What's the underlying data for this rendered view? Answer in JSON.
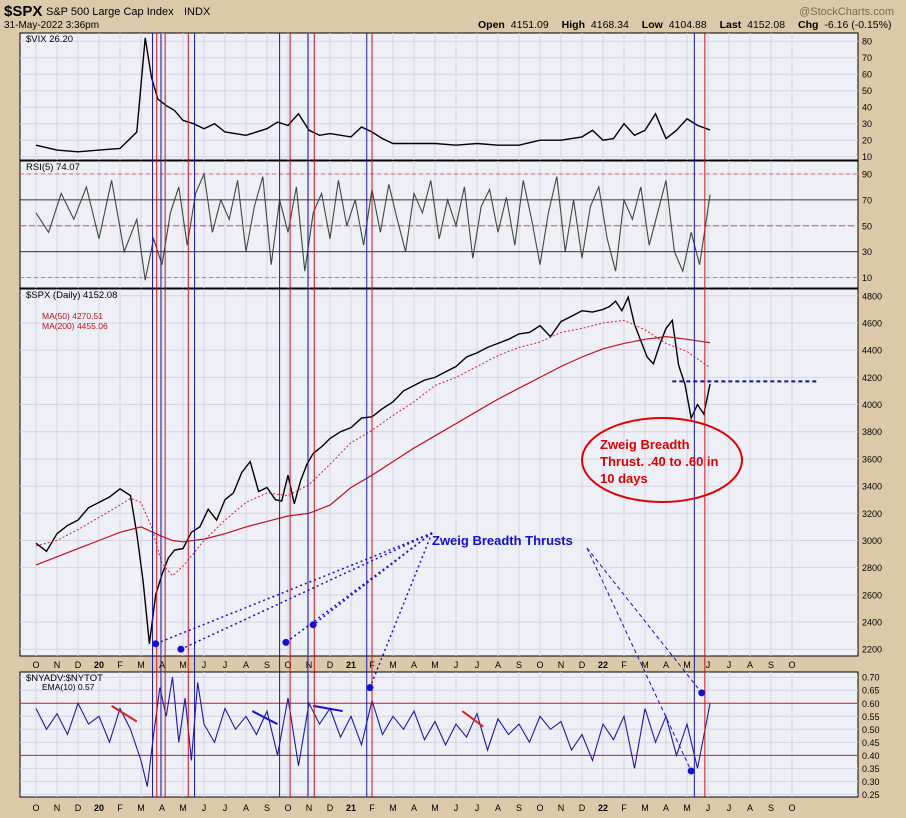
{
  "header": {
    "symbol": "$SPX",
    "name": "S&P 500 Large Cap Index",
    "exchange": "INDX",
    "date": "31-May-2022 3:36pm",
    "watermark": "@StockCharts.com",
    "open_label": "Open",
    "open": "4151.09",
    "high_label": "High",
    "high": "4168.34",
    "low_label": "Low",
    "low": "4104.88",
    "last_label": "Last",
    "last": "4152.08",
    "chg_label": "Chg",
    "chg": "-6.16 (-0.15%)"
  },
  "colors": {
    "background": "#efeff8",
    "frame": "#dcc9aa",
    "price": "#000000",
    "ma50": "#d0202a",
    "ma200": "#c0101a",
    "rsi_line": "#3a4a3a",
    "rsi_fill": "#8a8a7a",
    "breadth": "#1a1aa0",
    "signal_red": "#d0101a",
    "signal_blue": "#1a1aa0",
    "annotation_blue": "#1010d0",
    "annotation_red": "#e00000"
  },
  "x_axis": {
    "labels": [
      "O",
      "N",
      "D",
      "20",
      "F",
      "M",
      "A",
      "M",
      "J",
      "J",
      "A",
      "S",
      "O",
      "N",
      "D",
      "21",
      "F",
      "M",
      "A",
      "M",
      "J",
      "J",
      "A",
      "S",
      "O",
      "N",
      "D",
      "22",
      "F",
      "M",
      "A",
      "M",
      "J",
      "J",
      "A",
      "S",
      "O"
    ]
  },
  "vertical_signals": [
    {
      "month_index": 5.55,
      "color": "blue"
    },
    {
      "month_index": 5.75,
      "color": "red"
    },
    {
      "month_index": 5.95,
      "color": "blue"
    },
    {
      "month_index": 6.15,
      "color": "red"
    },
    {
      "month_index": 7.25,
      "color": "red"
    },
    {
      "month_index": 7.55,
      "color": "blue"
    },
    {
      "month_index": 11.6,
      "color": "blue"
    },
    {
      "month_index": 12.1,
      "color": "red"
    },
    {
      "month_index": 12.95,
      "color": "blue"
    },
    {
      "month_index": 13.25,
      "color": "red"
    },
    {
      "month_index": 15.75,
      "color": "blue"
    },
    {
      "month_index": 16.0,
      "color": "red"
    },
    {
      "month_index": 31.35,
      "color": "blue"
    },
    {
      "month_index": 31.85,
      "color": "red"
    }
  ],
  "annotations": {
    "zbt_title": "Zweig Breadth Thrusts",
    "zbt_note_line1": "Zweig Breadth",
    "zbt_note_line2": "Thrust. .40 to .60 in",
    "zbt_note_line3": "10 days"
  },
  "chart_data": [
    {
      "type": "line",
      "title": "$VIX 26.20",
      "ylim": [
        8,
        85
      ],
      "yticks": [
        10,
        20,
        30,
        40,
        50,
        60,
        70,
        80
      ],
      "x_months": [
        0,
        1,
        2,
        3,
        4,
        4.8,
        5.2,
        5.5,
        5.8,
        6.2,
        6.6,
        7,
        7.5,
        8,
        8.5,
        9,
        10,
        11,
        11.5,
        12,
        12.5,
        13,
        13.5,
        14,
        15,
        15.5,
        16,
        16.5,
        17,
        18,
        19,
        20,
        21,
        22,
        23,
        24,
        25,
        26,
        26.5,
        27,
        27.5,
        28,
        28.5,
        29,
        29.5,
        30,
        30.5,
        31,
        31.5,
        32.1
      ],
      "values": [
        17,
        14,
        13,
        14,
        15,
        25,
        82,
        58,
        45,
        41,
        38,
        32,
        30,
        27,
        30,
        25,
        23,
        27,
        31,
        29,
        36,
        26,
        23,
        24,
        22,
        28,
        25,
        21,
        18,
        18,
        18,
        17,
        18,
        17,
        17,
        20,
        20,
        22,
        26,
        20,
        21,
        30,
        23,
        26,
        36,
        21,
        26,
        33,
        29,
        26.2
      ]
    },
    {
      "type": "line",
      "title": "RSI(5) 74.07",
      "ylim": [
        2,
        100
      ],
      "yticks": [
        10,
        30,
        50,
        70,
        90
      ],
      "overbought": 70,
      "oversold": 30,
      "reference_lines": [
        90,
        50,
        10
      ],
      "x_months": [
        0,
        0.6,
        1.2,
        1.8,
        2.4,
        3,
        3.6,
        4.2,
        4.8,
        5.2,
        5.6,
        6,
        6.4,
        6.8,
        7.2,
        7.6,
        8,
        8.4,
        8.8,
        9.2,
        9.6,
        10,
        10.4,
        10.8,
        11.2,
        11.6,
        12,
        12.4,
        12.8,
        13.2,
        13.6,
        14,
        14.4,
        14.8,
        15.2,
        15.6,
        16,
        16.4,
        16.8,
        17.2,
        17.6,
        18,
        18.4,
        18.8,
        19.2,
        19.6,
        20,
        20.4,
        20.8,
        21.2,
        21.6,
        22,
        22.4,
        22.8,
        23.2,
        23.6,
        24,
        24.4,
        24.8,
        25.2,
        25.6,
        26,
        26.4,
        26.8,
        27.2,
        27.6,
        28,
        28.4,
        28.8,
        29.2,
        29.6,
        30,
        30.4,
        30.8,
        31.2,
        31.6,
        32.1
      ],
      "values": [
        60,
        45,
        75,
        55,
        80,
        40,
        85,
        30,
        55,
        8,
        40,
        20,
        60,
        80,
        35,
        75,
        90,
        45,
        70,
        55,
        85,
        30,
        65,
        88,
        20,
        70,
        45,
        80,
        15,
        60,
        75,
        40,
        85,
        50,
        70,
        35,
        78,
        45,
        82,
        55,
        30,
        75,
        60,
        85,
        40,
        70,
        50,
        80,
        25,
        65,
        78,
        45,
        72,
        35,
        85,
        55,
        20,
        60,
        88,
        30,
        70,
        25,
        65,
        80,
        40,
        15,
        70,
        55,
        80,
        35,
        60,
        85,
        30,
        15,
        45,
        20,
        74
      ]
    },
    {
      "type": "line",
      "title": "$SPX (Daily) 4152.08",
      "ylim": [
        2150,
        4850
      ],
      "yticks": [
        2200,
        2400,
        2600,
        2800,
        3000,
        3200,
        3400,
        3600,
        3800,
        4000,
        4200,
        4400,
        4600,
        4800
      ],
      "support_level": 4170,
      "series": [
        {
          "name": "$SPX (Daily) 4152.08",
          "x_months": [
            0,
            0.5,
            1,
            1.5,
            2,
            2.5,
            3,
            3.5,
            4,
            4.5,
            4.8,
            5.1,
            5.4,
            5.7,
            6,
            6.3,
            6.6,
            7,
            7.4,
            7.8,
            8.2,
            8.6,
            9,
            9.4,
            9.8,
            10.2,
            10.6,
            11,
            11.4,
            11.7,
            12,
            12.3,
            12.6,
            12.9,
            13.2,
            13.6,
            14,
            14.5,
            15,
            15.5,
            16,
            16.5,
            17,
            17.5,
            18,
            18.5,
            19,
            19.5,
            20,
            20.5,
            21,
            21.5,
            22,
            22.5,
            23,
            23.5,
            24,
            24.5,
            25,
            25.5,
            26,
            26.5,
            27,
            27.3,
            27.6,
            27.9,
            28.2,
            28.5,
            28.8,
            29.1,
            29.4,
            29.7,
            30,
            30.3,
            30.6,
            30.9,
            31.2,
            31.5,
            31.8,
            32.1
          ],
          "values": [
            2980,
            2920,
            3050,
            3110,
            3150,
            3240,
            3280,
            3320,
            3380,
            3330,
            3050,
            2700,
            2240,
            2600,
            2750,
            2870,
            2930,
            2940,
            3060,
            3100,
            3230,
            3150,
            3300,
            3350,
            3500,
            3580,
            3360,
            3390,
            3300,
            3290,
            3480,
            3270,
            3440,
            3560,
            3640,
            3690,
            3750,
            3800,
            3830,
            3900,
            3910,
            3970,
            4020,
            4100,
            4140,
            4180,
            4200,
            4240,
            4280,
            4350,
            4380,
            4420,
            4450,
            4480,
            4520,
            4530,
            4580,
            4500,
            4610,
            4650,
            4690,
            4680,
            4700,
            4720,
            4760,
            4690,
            4790,
            4590,
            4470,
            4350,
            4300,
            4440,
            4560,
            4620,
            4290,
            4150,
            3900,
            4000,
            3930,
            4152
          ]
        },
        {
          "name": "MA(50) 4270.51",
          "x_months": [
            0,
            1,
            2,
            3,
            4,
            4.5,
            5,
            5.5,
            6,
            6.5,
            7,
            8,
            9,
            10,
            11,
            12,
            13,
            14,
            15,
            16,
            17,
            18,
            19,
            20,
            21,
            22,
            23,
            24,
            25,
            26,
            27,
            28,
            29,
            30,
            31,
            32.1
          ],
          "values": [
            2960,
            3000,
            3080,
            3170,
            3260,
            3310,
            3280,
            3100,
            2830,
            2740,
            2810,
            3000,
            3150,
            3280,
            3350,
            3330,
            3410,
            3560,
            3720,
            3810,
            3920,
            4020,
            4140,
            4200,
            4280,
            4360,
            4420,
            4460,
            4530,
            4560,
            4600,
            4620,
            4550,
            4450,
            4390,
            4270
          ]
        },
        {
          "name": "MA(200) 4455.06",
          "x_months": [
            0,
            1,
            2,
            3,
            4,
            5,
            6,
            6.5,
            7,
            8,
            9,
            10,
            11,
            12,
            13,
            14,
            15,
            16,
            17,
            18,
            19,
            20,
            21,
            22,
            23,
            24,
            25,
            26,
            27,
            28,
            29,
            30,
            31,
            32.1
          ],
          "values": [
            2820,
            2880,
            2940,
            3000,
            3060,
            3100,
            3030,
            3000,
            2990,
            3010,
            3050,
            3100,
            3140,
            3180,
            3200,
            3260,
            3390,
            3480,
            3580,
            3680,
            3770,
            3860,
            3950,
            4040,
            4120,
            4200,
            4280,
            4350,
            4410,
            4450,
            4480,
            4500,
            4480,
            4455
          ]
        }
      ]
    },
    {
      "type": "line",
      "title": "$NYADV:$NYTOT",
      "legend": "EMA(10) 0.57",
      "ylim": [
        0.24,
        0.72
      ],
      "yticks": [
        0.25,
        0.3,
        0.35,
        0.4,
        0.45,
        0.5,
        0.55,
        0.6,
        0.65,
        0.7
      ],
      "reference_lines": [
        0.6,
        0.4
      ],
      "x_months": [
        0,
        0.5,
        1,
        1.5,
        2,
        2.5,
        3,
        3.5,
        4,
        4.5,
        5,
        5.3,
        5.6,
        5.9,
        6.2,
        6.5,
        6.8,
        7.1,
        7.4,
        7.7,
        8,
        8.5,
        9,
        9.5,
        10,
        10.5,
        11,
        11.5,
        12,
        12.5,
        13,
        13.5,
        14,
        14.5,
        15,
        15.5,
        16,
        16.5,
        17,
        17.5,
        18,
        18.5,
        19,
        19.5,
        20,
        20.5,
        21,
        21.5,
        22,
        22.5,
        23,
        23.5,
        24,
        24.5,
        25,
        25.5,
        26,
        26.5,
        27,
        27.5,
        28,
        28.5,
        29,
        29.5,
        30,
        30.5,
        31,
        31.5,
        32.1
      ],
      "values": [
        0.58,
        0.5,
        0.56,
        0.48,
        0.6,
        0.52,
        0.55,
        0.45,
        0.58,
        0.5,
        0.38,
        0.28,
        0.48,
        0.66,
        0.55,
        0.7,
        0.45,
        0.62,
        0.38,
        0.68,
        0.52,
        0.45,
        0.58,
        0.5,
        0.55,
        0.48,
        0.57,
        0.4,
        0.62,
        0.36,
        0.6,
        0.52,
        0.58,
        0.47,
        0.55,
        0.44,
        0.61,
        0.48,
        0.55,
        0.5,
        0.57,
        0.46,
        0.53,
        0.44,
        0.52,
        0.47,
        0.56,
        0.42,
        0.54,
        0.48,
        0.52,
        0.45,
        0.55,
        0.5,
        0.53,
        0.42,
        0.48,
        0.38,
        0.52,
        0.46,
        0.55,
        0.35,
        0.58,
        0.45,
        0.55,
        0.4,
        0.52,
        0.35,
        0.6
      ]
    }
  ]
}
